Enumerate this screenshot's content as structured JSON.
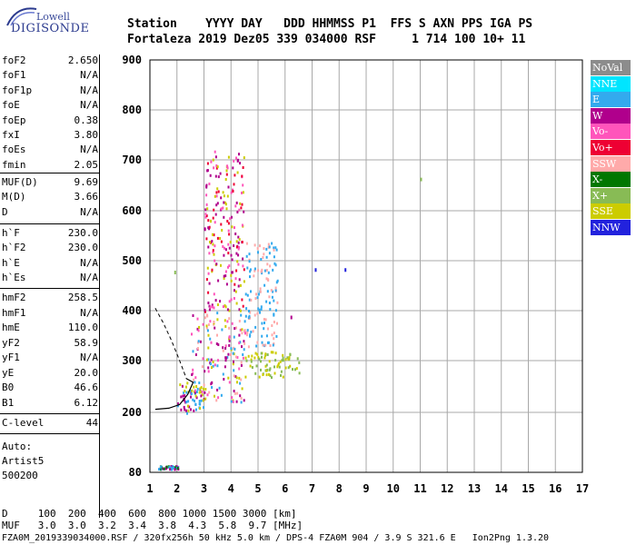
{
  "logo": {
    "top_text": "Lowell",
    "bottom_text": "DIGISONDE"
  },
  "header": {
    "line1": "Station    YYYY DAY   DDD HHMMSS P1  FFS S AXN PPS IGA PS",
    "line2": "Fortaleza 2019 Dez05 339 034000 RSF     1 714 100 10+ 11"
  },
  "params": {
    "group1": [
      {
        "name": "foF2",
        "value": "2.650"
      },
      {
        "name": "foF1",
        "value": "N/A"
      },
      {
        "name": "foF1p",
        "value": "N/A"
      },
      {
        "name": "foE",
        "value": "N/A"
      },
      {
        "name": "foEp",
        "value": "0.38"
      },
      {
        "name": "fxI",
        "value": "3.80"
      },
      {
        "name": "foEs",
        "value": "N/A"
      },
      {
        "name": "fmin",
        "value": "2.05"
      }
    ],
    "group2": [
      {
        "name": "MUF(D)",
        "value": "9.69"
      },
      {
        "name": "M(D)",
        "value": "3.66"
      },
      {
        "name": "D",
        "value": "N/A"
      }
    ],
    "group3": [
      {
        "name": "h`F",
        "value": "230.0"
      },
      {
        "name": "h`F2",
        "value": "230.0"
      },
      {
        "name": "h`E",
        "value": "N/A"
      },
      {
        "name": "h`Es",
        "value": "N/A"
      }
    ],
    "group4": [
      {
        "name": "hmF2",
        "value": "258.5"
      },
      {
        "name": "hmF1",
        "value": "N/A"
      },
      {
        "name": "hmE",
        "value": "110.0"
      },
      {
        "name": "yF2",
        "value": "58.9"
      },
      {
        "name": "yF1",
        "value": "N/A"
      },
      {
        "name": "yE",
        "value": "20.0"
      },
      {
        "name": "B0",
        "value": "46.6"
      },
      {
        "name": "B1",
        "value": "6.12"
      }
    ],
    "group5": [
      {
        "name": "C-level",
        "value": "44"
      }
    ],
    "auto_lines": [
      "Auto:",
      "Artist5",
      "500200"
    ]
  },
  "legend": [
    {
      "label": "NoVal",
      "color": "#8c8c8c"
    },
    {
      "label": "NNE",
      "color": "#00e5ff"
    },
    {
      "label": "E",
      "color": "#33aaee"
    },
    {
      "label": "W",
      "color": "#b0008c"
    },
    {
      "label": "Vo-",
      "color": "#ff55bb"
    },
    {
      "label": "Vo+",
      "color": "#ee0033"
    },
    {
      "label": "SSW",
      "color": "#ffaaaa"
    },
    {
      "label": "X-",
      "color": "#007700"
    },
    {
      "label": "X+",
      "color": "#88bb55"
    },
    {
      "label": "SSE",
      "color": "#cccc00"
    },
    {
      "label": "NNW",
      "color": "#2222dd"
    }
  ],
  "footer": {
    "line1": "D     100  200  400  600  800 1000 1500 3000 [km]",
    "line2": "MUF   3.0  3.0  3.2  3.4  3.8  4.3  5.8  9.7 [MHz]",
    "line3": "FZA0M_2019339034000.RSF / 320fx256h 50 kHz 5.0 km / DPS-4 FZA0M 904 / 3.9 S 321.6 E   Ion2Png 1.3.20"
  },
  "chart_data": {
    "type": "scatter",
    "title": "",
    "xlabel": "",
    "ylabel": "",
    "xlim": [
      1,
      17
    ],
    "ylim": [
      80,
      900
    ],
    "x_ticks": [
      "1",
      "2",
      "3",
      "4",
      "5",
      "6",
      "7",
      "8",
      "9",
      "10",
      "11",
      "12",
      "13",
      "14",
      "15",
      "16",
      "17"
    ],
    "y_ticks": [
      "80",
      "200",
      "300",
      "400",
      "500",
      "600",
      "700",
      "800",
      "900"
    ],
    "y_tick_values": [
      80,
      200,
      300,
      400,
      500,
      600,
      700,
      800,
      900
    ],
    "grid": true,
    "echo_clusters": [
      {
        "x_range": [
          2.0,
          3.0
        ],
        "y_range": [
          200,
          260
        ],
        "colors": [
          "#cccc00",
          "#33aaee",
          "#b0008c"
        ]
      },
      {
        "x_range": [
          2.5,
          4.5
        ],
        "y_range": [
          220,
          400
        ],
        "colors": [
          "#cccc00",
          "#ff55bb",
          "#b0008c",
          "#ffaaaa",
          "#33aaee"
        ]
      },
      {
        "x_range": [
          3.0,
          4.5
        ],
        "y_range": [
          400,
          720
        ],
        "colors": [
          "#b0008c",
          "#ee0033",
          "#cccc00",
          "#ff55bb"
        ]
      },
      {
        "x_range": [
          4.5,
          6.5
        ],
        "y_range": [
          270,
          320
        ],
        "colors": [
          "#cccc00",
          "#88bb55"
        ]
      },
      {
        "x_range": [
          4.5,
          5.7
        ],
        "y_range": [
          330,
          540
        ],
        "colors": [
          "#33aaee",
          "#ffaaaa"
        ]
      },
      {
        "x_range": [
          1.3,
          2.1
        ],
        "y_range": [
          88,
          95
        ],
        "colors": [
          "#b0008c",
          "#33aaee",
          "#007700"
        ]
      }
    ],
    "isolated_points": [
      {
        "x": 7.1,
        "y": 485,
        "color": "#2222dd"
      },
      {
        "x": 8.2,
        "y": 485,
        "color": "#2222dd"
      },
      {
        "x": 6.2,
        "y": 390,
        "color": "#b0008c"
      },
      {
        "x": 11.0,
        "y": 665,
        "color": "#88bb55"
      },
      {
        "x": 1.9,
        "y": 480,
        "color": "#88bb55"
      }
    ],
    "profile_curve": [
      {
        "x": 1.2,
        "y": 405
      },
      {
        "x": 1.5,
        "y": 375
      },
      {
        "x": 1.8,
        "y": 340
      },
      {
        "x": 2.1,
        "y": 300
      },
      {
        "x": 2.35,
        "y": 265
      },
      {
        "x": 2.6,
        "y": 258
      },
      {
        "x": 2.4,
        "y": 235
      },
      {
        "x": 2.1,
        "y": 215
      },
      {
        "x": 1.7,
        "y": 208
      },
      {
        "x": 1.2,
        "y": 206
      }
    ]
  }
}
